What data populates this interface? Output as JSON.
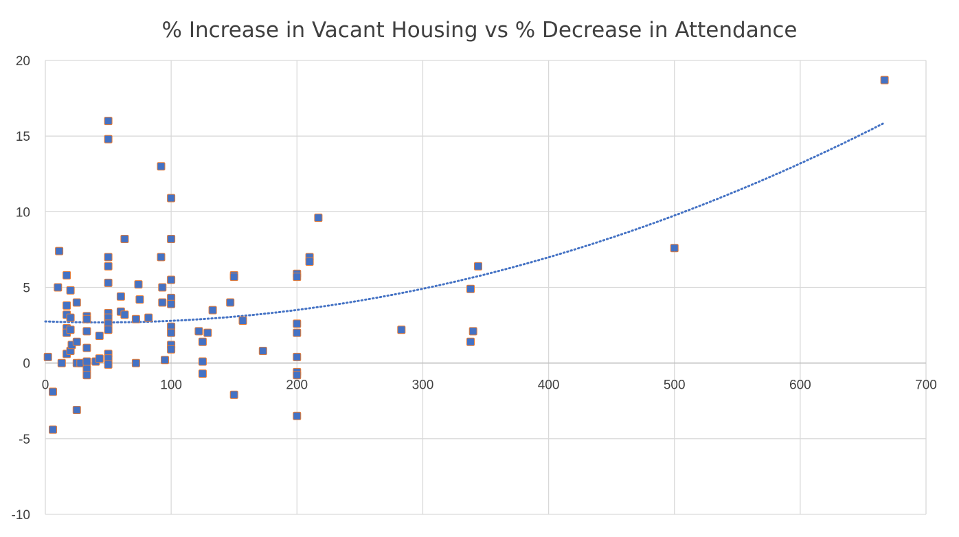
{
  "chart_data": {
    "type": "scatter",
    "title": "% Increase in Vacant Housing vs % Decrease in Attendance",
    "xlabel": "",
    "ylabel": "",
    "xlim": [
      0,
      700
    ],
    "ylim": [
      -10,
      20
    ],
    "x_ticks": [
      "0",
      "100",
      "200",
      "300",
      "400",
      "500",
      "600",
      "700"
    ],
    "y_ticks": [
      "-10",
      "-5",
      "0",
      "5",
      "10",
      "15",
      "20"
    ],
    "grid": true,
    "legend": "none",
    "colors": {
      "marker_fill": "#4472C4",
      "marker_edge": "#ED7D31",
      "trendline": "#4472C4",
      "grid": "#D9D9D9",
      "text": "#404040"
    },
    "trendline": {
      "type": "polynomial",
      "style": "dotted",
      "coefficients": [
        2.75,
        -0.003,
        3.4e-05
      ],
      "x_range": [
        0,
        667
      ]
    },
    "points": [
      {
        "x": 2,
        "y": 0.4
      },
      {
        "x": 6,
        "y": -1.9
      },
      {
        "x": 6,
        "y": -4.4
      },
      {
        "x": 10,
        "y": 5.0
      },
      {
        "x": 11,
        "y": 7.4
      },
      {
        "x": 13,
        "y": 0.0
      },
      {
        "x": 17,
        "y": 5.8
      },
      {
        "x": 17,
        "y": 3.8
      },
      {
        "x": 17,
        "y": 3.2
      },
      {
        "x": 17,
        "y": 2.3
      },
      {
        "x": 17,
        "y": 2.0
      },
      {
        "x": 17,
        "y": 0.6
      },
      {
        "x": 20,
        "y": 0.8
      },
      {
        "x": 20,
        "y": 4.8
      },
      {
        "x": 20,
        "y": 3.0
      },
      {
        "x": 20,
        "y": 2.2
      },
      {
        "x": 21,
        "y": 1.2
      },
      {
        "x": 25,
        "y": 4.0
      },
      {
        "x": 25,
        "y": 1.4
      },
      {
        "x": 25,
        "y": 0.0
      },
      {
        "x": 25,
        "y": -3.1
      },
      {
        "x": 28,
        "y": 0.0
      },
      {
        "x": 33,
        "y": 3.1
      },
      {
        "x": 33,
        "y": 2.9
      },
      {
        "x": 33,
        "y": 2.1
      },
      {
        "x": 33,
        "y": 1.0
      },
      {
        "x": 33,
        "y": 0.1
      },
      {
        "x": 33,
        "y": -0.4
      },
      {
        "x": 33,
        "y": -0.8
      },
      {
        "x": 40,
        "y": 0.1
      },
      {
        "x": 43,
        "y": 1.8
      },
      {
        "x": 43,
        "y": 0.3
      },
      {
        "x": 50,
        "y": 16.0
      },
      {
        "x": 50,
        "y": 14.8
      },
      {
        "x": 50,
        "y": 7.0
      },
      {
        "x": 50,
        "y": 6.4
      },
      {
        "x": 50,
        "y": 5.3
      },
      {
        "x": 50,
        "y": 3.3
      },
      {
        "x": 50,
        "y": 3.0
      },
      {
        "x": 50,
        "y": 2.6
      },
      {
        "x": 50,
        "y": 2.2
      },
      {
        "x": 50,
        "y": 0.6
      },
      {
        "x": 50,
        "y": 0.3
      },
      {
        "x": 50,
        "y": -0.1
      },
      {
        "x": 60,
        "y": 4.4
      },
      {
        "x": 60,
        "y": 3.4
      },
      {
        "x": 63,
        "y": 8.2
      },
      {
        "x": 63,
        "y": 3.2
      },
      {
        "x": 72,
        "y": 2.9
      },
      {
        "x": 72,
        "y": 0.0
      },
      {
        "x": 74,
        "y": 5.2
      },
      {
        "x": 75,
        "y": 4.2
      },
      {
        "x": 82,
        "y": 3.0
      },
      {
        "x": 92,
        "y": 13.0
      },
      {
        "x": 92,
        "y": 7.0
      },
      {
        "x": 93,
        "y": 5.0
      },
      {
        "x": 93,
        "y": 4.0
      },
      {
        "x": 95,
        "y": 0.2
      },
      {
        "x": 100,
        "y": 10.9
      },
      {
        "x": 100,
        "y": 8.2
      },
      {
        "x": 100,
        "y": 5.5
      },
      {
        "x": 100,
        "y": 4.3
      },
      {
        "x": 100,
        "y": 3.9
      },
      {
        "x": 100,
        "y": 2.4
      },
      {
        "x": 100,
        "y": 2.0
      },
      {
        "x": 100,
        "y": 1.2
      },
      {
        "x": 100,
        "y": 0.9
      },
      {
        "x": 122,
        "y": 2.1
      },
      {
        "x": 125,
        "y": 1.4
      },
      {
        "x": 125,
        "y": 0.1
      },
      {
        "x": 125,
        "y": -0.7
      },
      {
        "x": 129,
        "y": 2.0
      },
      {
        "x": 133,
        "y": 3.5
      },
      {
        "x": 147,
        "y": 4.0
      },
      {
        "x": 150,
        "y": 5.8
      },
      {
        "x": 150,
        "y": 5.7
      },
      {
        "x": 150,
        "y": -2.1
      },
      {
        "x": 157,
        "y": 2.8
      },
      {
        "x": 173,
        "y": 0.8
      },
      {
        "x": 200,
        "y": 5.9
      },
      {
        "x": 200,
        "y": 5.7
      },
      {
        "x": 200,
        "y": 2.6
      },
      {
        "x": 200,
        "y": 2.0
      },
      {
        "x": 200,
        "y": 0.4
      },
      {
        "x": 200,
        "y": -0.6
      },
      {
        "x": 200,
        "y": -0.8
      },
      {
        "x": 200,
        "y": -3.5
      },
      {
        "x": 210,
        "y": 7.0
      },
      {
        "x": 210,
        "y": 6.7
      },
      {
        "x": 217,
        "y": 9.6
      },
      {
        "x": 283,
        "y": 2.2
      },
      {
        "x": 338,
        "y": 4.9
      },
      {
        "x": 338,
        "y": 1.4
      },
      {
        "x": 340,
        "y": 2.1
      },
      {
        "x": 344,
        "y": 6.4
      },
      {
        "x": 500,
        "y": 7.6
      },
      {
        "x": 667,
        "y": 18.7
      }
    ]
  }
}
